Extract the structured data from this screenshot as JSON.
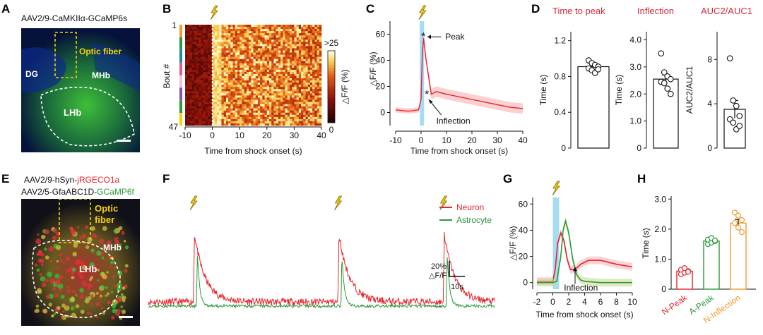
{
  "panels": {
    "A": {
      "letter": "A",
      "title": "AAV2/9-CaMKIIα-GCaMP6s",
      "labels": {
        "dg": "DG",
        "fiber": "Optic fiber",
        "mhb": "MHb",
        "lhb": "LHb"
      }
    },
    "B": {
      "letter": "B",
      "colorbar_max": ">25",
      "colorbar_min": "0",
      "colorbar_label": "△F/F (%)",
      "ylabel": "Bout #",
      "y_top": "1",
      "y_bottom": "47"
    },
    "C": {
      "letter": "C",
      "peak_label": "Peak",
      "inflection_label": "Inflection"
    },
    "D": {
      "letter": "D",
      "title_ttp": "Time to peak",
      "title_infl": "Inflection",
      "title_auc": "AUC2/AUC1"
    },
    "E": {
      "letter": "E",
      "line1_prefix": "AAV2/9-hSyn-",
      "line1_colored": "jRGECO1a",
      "line2_prefix": "AAV2/5-GfaABC1D-",
      "line2_colored": "GCaMP6f",
      "labels": {
        "fiber1": "Optic",
        "fiber2": "fiber",
        "mhb": "MHb",
        "lhb": "LHb"
      }
    },
    "F": {
      "letter": "F",
      "legend_neuron": "Neuron",
      "legend_astro": "Astrocyte",
      "scale_y1": "20%",
      "scale_y2": "△F/F",
      "scale_x": "10s"
    },
    "G": {
      "letter": "G",
      "inflection_label": "Inflection"
    },
    "H": {
      "letter": "H"
    }
  },
  "colors": {
    "neuron": "#e8232b",
    "astrocyte": "#2a9a3c",
    "orange": "#f39c30",
    "stim_band": "#8fd3f0",
    "title_red": "#d8283a",
    "label_yellow": "#f5d20a"
  },
  "chart_data": [
    {
      "panel": "B",
      "type": "heatmap",
      "xlabel": "Time from shock onset (s)",
      "ylabel": "Bout #",
      "xticks": [
        "-10",
        "0",
        "10",
        "20",
        "30",
        "40"
      ],
      "rows": 47,
      "xlim": [
        -10,
        40
      ],
      "zlim": [
        0,
        25
      ]
    },
    {
      "panel": "C",
      "type": "line",
      "xlabel": "Time from shock onset (s)",
      "ylabel": "△F/F (%)",
      "xticks": [
        "-10",
        "0",
        "10",
        "20",
        "30",
        "40"
      ],
      "yticks": [
        "0",
        "20",
        "40",
        "60"
      ],
      "xlim": [
        -10,
        40
      ],
      "ylim": [
        -10,
        70
      ],
      "series": [
        {
          "x": [
            -10,
            -5,
            -1,
            0,
            0.5,
            1,
            2,
            4,
            6,
            10,
            15,
            20,
            25,
            30,
            35,
            40
          ],
          "values": [
            2,
            1,
            2,
            10,
            45,
            57,
            40,
            14,
            16,
            14,
            12,
            10,
            8,
            6,
            4,
            3
          ]
        }
      ]
    },
    {
      "panel": "D",
      "type": "bar",
      "ylabel": "Time (s)",
      "yticks": [
        "0",
        "0.4",
        "0.8",
        "1.2"
      ],
      "ylim": [
        0,
        1.3
      ],
      "values": [
        0.91
      ],
      "sem": 0.04,
      "points": [
        0.98,
        0.95,
        0.93,
        0.91,
        0.89,
        0.87,
        0.84,
        0.88
      ]
    },
    {
      "panel": "D",
      "type": "bar",
      "ylabel": "Time (s)",
      "yticks": [
        "0",
        "1.0",
        "2.0",
        "3.0",
        "4.0"
      ],
      "ylim": [
        0,
        4.3
      ],
      "values": [
        2.55
      ],
      "sem": 0.15,
      "points": [
        3.5,
        2.8,
        2.65,
        2.55,
        2.45,
        2.4,
        2.2,
        2.0
      ]
    },
    {
      "panel": "D",
      "type": "bar",
      "ylabel": "AUC2/AUC1",
      "yticks": [
        "0",
        "4",
        "8"
      ],
      "ylim": [
        0,
        10.5
      ],
      "values": [
        3.5
      ],
      "sem": 0.8,
      "points": [
        8.1,
        4.3,
        3.8,
        2.9,
        2.6,
        2.3,
        1.7,
        2.0
      ]
    },
    {
      "panel": "F",
      "type": "line",
      "stim_times": [
        15,
        63,
        98
      ],
      "series": [
        {
          "name": "Neuron",
          "peak_times": [
            15,
            63,
            98
          ]
        },
        {
          "name": "Astrocyte",
          "peak_times": [
            16,
            64,
            99
          ]
        }
      ]
    },
    {
      "panel": "G",
      "type": "line",
      "xlabel": "Time from shock onset (s)",
      "ylabel": "△F/F (%)",
      "xticks": [
        "-2",
        "0",
        "2",
        "4",
        "6",
        "8",
        "10"
      ],
      "yticks": [
        "0",
        "20",
        "40",
        "60"
      ],
      "xlim": [
        -2,
        10
      ],
      "ylim": [
        -5,
        65
      ],
      "series": [
        {
          "name": "Neuron",
          "x": [
            -2,
            0,
            0.3,
            0.6,
            1,
            1.4,
            1.8,
            2.2,
            2.8,
            3.5,
            4.5,
            6,
            8,
            10
          ],
          "values": [
            1,
            1,
            10,
            30,
            38,
            32,
            18,
            10,
            10,
            14,
            17,
            17,
            14,
            12
          ]
        },
        {
          "name": "Astrocyte",
          "x": [
            -2,
            0,
            0.5,
            1,
            1.3,
            1.6,
            2,
            2.5,
            3,
            3.5,
            4,
            6,
            8,
            10
          ],
          "values": [
            0,
            0,
            1,
            20,
            40,
            47,
            38,
            18,
            6,
            2,
            1,
            0,
            0,
            0
          ]
        }
      ]
    },
    {
      "panel": "H",
      "type": "bar",
      "ylabel": "Time (s)",
      "yticks": [
        "0",
        "1.0",
        "2.0",
        "3.0"
      ],
      "ylim": [
        0,
        3.1
      ],
      "categories": [
        "N-Peak",
        "A-Peak",
        "N-Inflection"
      ],
      "values": [
        0.6,
        1.6,
        2.2
      ],
      "sem": [
        0.05,
        0.06,
        0.12
      ],
      "points": [
        [
          0.5,
          0.55,
          0.6,
          0.65,
          0.7,
          0.58
        ],
        [
          1.5,
          1.55,
          1.6,
          1.65,
          1.7,
          1.62
        ],
        [
          2.55,
          2.45,
          2.3,
          2.2,
          2.05,
          1.9
        ]
      ]
    }
  ]
}
